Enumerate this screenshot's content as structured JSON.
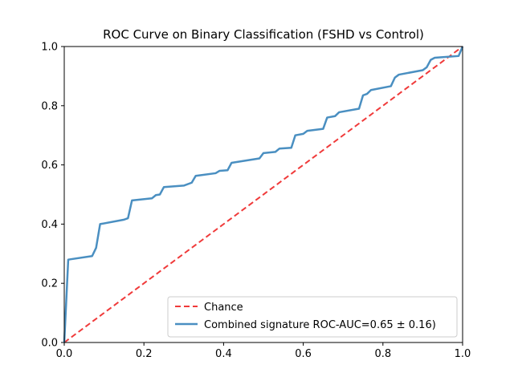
{
  "chart_data": {
    "type": "line",
    "title": "ROC Curve on Binary Classification (FSHD vs Control)",
    "xlabel": "",
    "ylabel": "",
    "xlim": [
      0.0,
      1.0
    ],
    "ylim": [
      0.0,
      1.0
    ],
    "x_ticks": [
      "0.0",
      "0.2",
      "0.4",
      "0.6",
      "0.8",
      "1.0"
    ],
    "y_ticks": [
      "0.0",
      "0.2",
      "0.4",
      "0.6",
      "0.8",
      "1.0"
    ],
    "grid": false,
    "legend_position": "lower right",
    "series": [
      {
        "name": "Chance",
        "color": "#f03a3a",
        "style": "dashed",
        "x": [
          0.0,
          1.0
        ],
        "y": [
          0.0,
          1.0
        ]
      },
      {
        "name": "Combined signature ROC-AUC=0.65 ± 0.16)",
        "color": "#4a8fc1",
        "style": "solid",
        "x": [
          0.0,
          0.01,
          0.02,
          0.07,
          0.08,
          0.09,
          0.15,
          0.16,
          0.17,
          0.22,
          0.23,
          0.24,
          0.25,
          0.3,
          0.32,
          0.33,
          0.38,
          0.39,
          0.41,
          0.42,
          0.49,
          0.5,
          0.53,
          0.54,
          0.57,
          0.58,
          0.6,
          0.61,
          0.65,
          0.66,
          0.68,
          0.69,
          0.74,
          0.75,
          0.76,
          0.77,
          0.82,
          0.83,
          0.84,
          0.9,
          0.91,
          0.92,
          0.93,
          0.94,
          0.99,
          1.0
        ],
        "y": [
          0.0,
          0.28,
          0.282,
          0.292,
          0.32,
          0.4,
          0.415,
          0.42,
          0.48,
          0.487,
          0.498,
          0.5,
          0.525,
          0.53,
          0.54,
          0.563,
          0.572,
          0.58,
          0.582,
          0.607,
          0.622,
          0.64,
          0.644,
          0.655,
          0.658,
          0.7,
          0.705,
          0.715,
          0.722,
          0.76,
          0.765,
          0.778,
          0.79,
          0.835,
          0.84,
          0.853,
          0.866,
          0.895,
          0.905,
          0.92,
          0.93,
          0.955,
          0.962,
          0.963,
          0.968,
          1.0
        ]
      }
    ]
  }
}
